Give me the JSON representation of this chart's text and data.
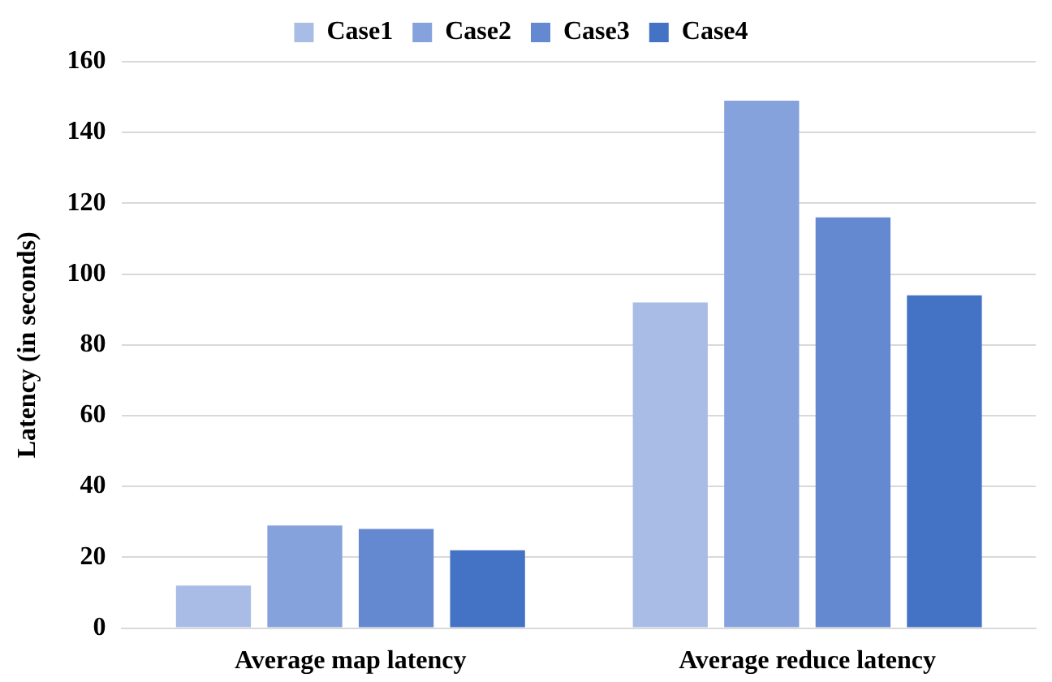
{
  "chart_data": {
    "type": "bar",
    "ylabel": "Latency (in seconds)",
    "categories": [
      "Average map latency",
      "Average reduce latency"
    ],
    "series": [
      {
        "name": "Case1",
        "color": "#a9bce6",
        "values": [
          12,
          92
        ]
      },
      {
        "name": "Case2",
        "color": "#86a2dc",
        "values": [
          29,
          149
        ]
      },
      {
        "name": "Case3",
        "color": "#6589d0",
        "values": [
          28,
          116
        ]
      },
      {
        "name": "Case4",
        "color": "#4472c4",
        "values": [
          22,
          94
        ]
      }
    ],
    "ylim": [
      0,
      160
    ],
    "yticks": [
      0,
      20,
      40,
      60,
      80,
      100,
      120,
      140,
      160
    ],
    "grid": "y",
    "legend": "top"
  }
}
